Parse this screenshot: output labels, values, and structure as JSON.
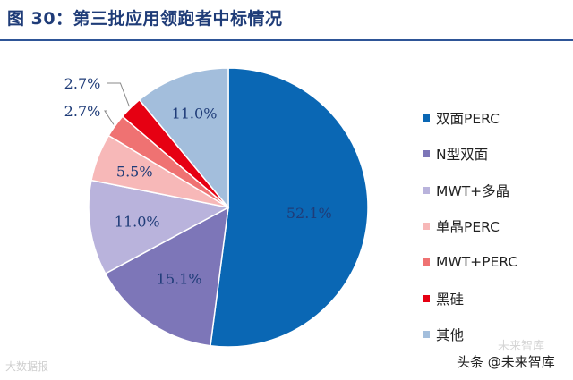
{
  "title": "图 30：第三批应用领跑者中标情况",
  "chart_data": {
    "type": "pie",
    "title": "图 30：第三批应用领跑者中标情况",
    "slices": [
      {
        "label": "双面PERC",
        "value": 52.1,
        "value_label": "52.1%",
        "color": "#0a67b4"
      },
      {
        "label": "N型双面",
        "value": 15.1,
        "value_label": "15.1%",
        "color": "#7d76b8"
      },
      {
        "label": "MWT+多晶",
        "value": 11.0,
        "value_label": "11.0%",
        "color": "#b9b3dc"
      },
      {
        "label": "单晶PERC",
        "value": 5.5,
        "value_label": "5.5%",
        "color": "#f7b8b8"
      },
      {
        "label": "MWT+PERC",
        "value": 2.7,
        "value_label": "2.7%",
        "color": "#ef7272"
      },
      {
        "label": "黑硅",
        "value": 2.7,
        "value_label": "2.7%",
        "color": "#e60012"
      },
      {
        "label": "其他",
        "value": 11.0,
        "value_label": "11.0%",
        "color": "#a3bedc"
      }
    ],
    "legend_position": "right"
  },
  "watermarks": {
    "left": "大数据报",
    "right": "头条 @未来智库",
    "right_faint": "未来智库"
  }
}
